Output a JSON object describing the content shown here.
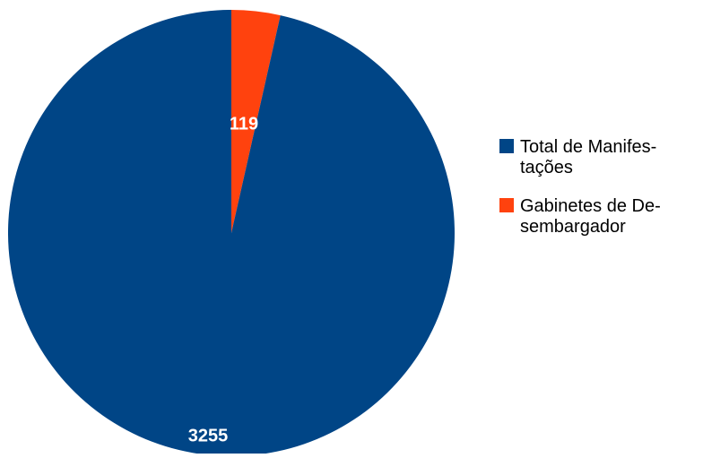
{
  "chart_data": {
    "type": "pie",
    "start_angle_deg": 0,
    "direction": "clockwise",
    "legend_position": "right",
    "slices": [
      {
        "label_lines": [
          "Gabinetes de De-",
          "sembargador"
        ],
        "value": 119,
        "value_label": "119",
        "color": "#ff420e"
      },
      {
        "label_lines": [
          "Total de Manifes-",
          "tações"
        ],
        "value": 3255,
        "value_label": "3255",
        "color": "#004586"
      }
    ],
    "legend_order": [
      1,
      0
    ]
  }
}
